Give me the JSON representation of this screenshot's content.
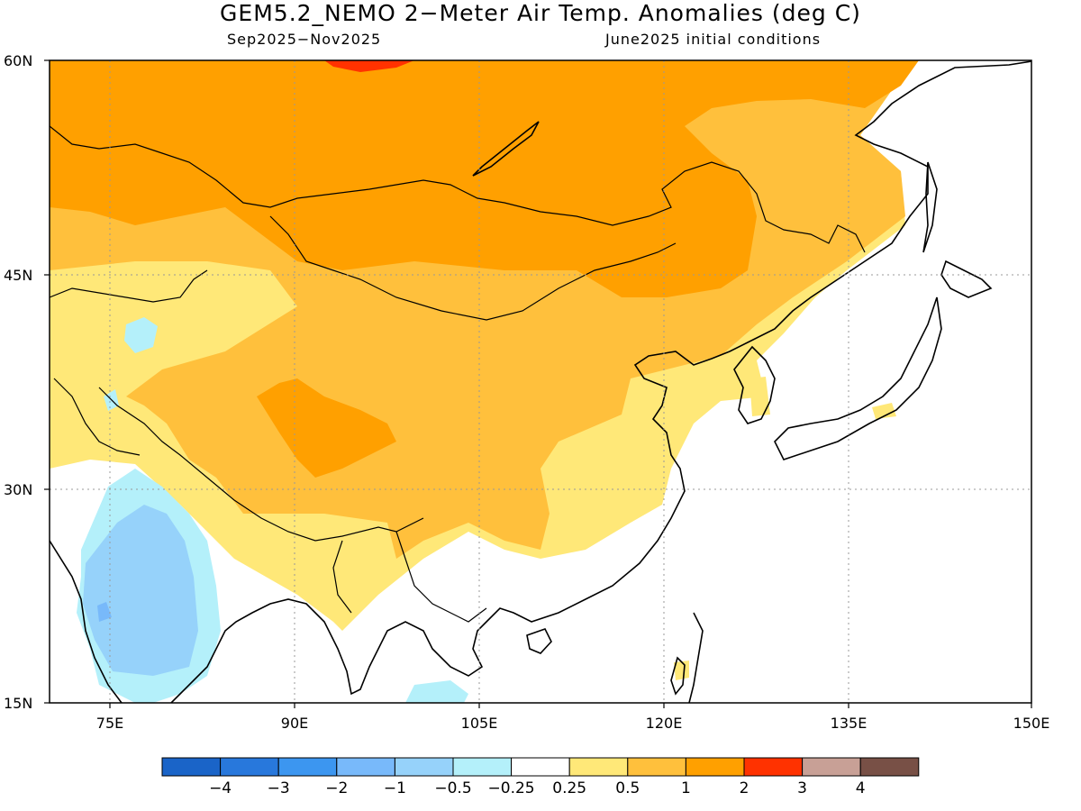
{
  "title": "GEM5.2_NEMO 2−Meter Air Temp. Anomalies (deg C)",
  "subtitle_left": "Sep2025−Nov2025",
  "subtitle_right": "June2025 initial conditions",
  "lat_labels": [
    "60N",
    "45N",
    "30N",
    "15N"
  ],
  "lon_labels": [
    "75E",
    "90E",
    "105E",
    "120E",
    "135E",
    "150E"
  ],
  "colorbar": {
    "colors": [
      "#1a64c8",
      "#2878dc",
      "#3c96f0",
      "#78b9fa",
      "#96d2fa",
      "#b4f0fa",
      "#ffffff",
      "#ffe878",
      "#ffc03c",
      "#ffa000",
      "#ff3200",
      "#c8a096",
      "#785046"
    ],
    "labels": [
      "−4",
      "−3",
      "−2",
      "−1",
      "−0.5",
      "−0.25",
      "0.25",
      "0.5",
      "1",
      "2",
      "3",
      "4"
    ]
  },
  "colors": {
    "anom_0_25_0_5": "#ffe878",
    "anom_0_5_1": "#ffc03c",
    "anom_1_2": "#ffa000",
    "anom_2_3": "#ff3200",
    "anom_neg_0_25_neg_0_5": "#b4f0fa",
    "anom_neg_0_5_neg_1": "#96d2fa",
    "anom_neg_1_neg_2": "#78b9fa"
  }
}
